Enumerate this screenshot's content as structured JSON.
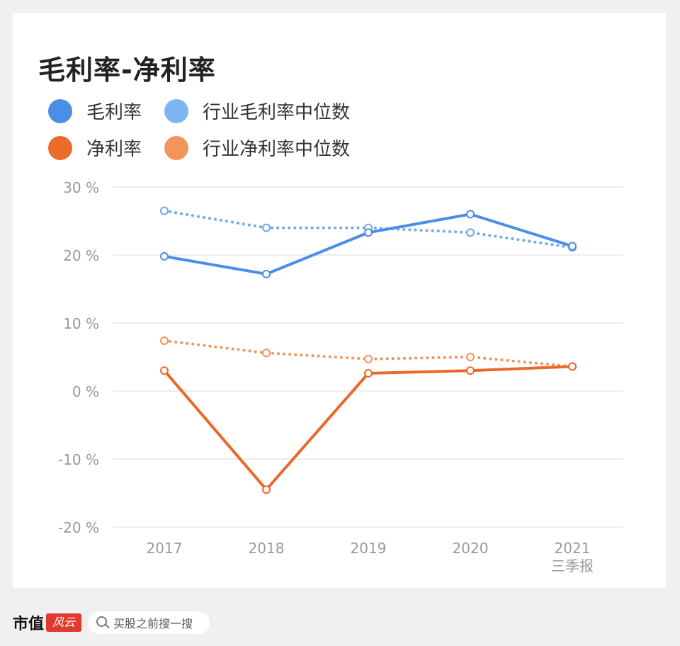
{
  "title": "毛利率-净利率",
  "legend": [
    {
      "label": "毛利率",
      "color": "#4a8ee8"
    },
    {
      "label": "行业毛利率中位数",
      "color": "#7eb4f0"
    },
    {
      "label": "净利率",
      "color": "#ec6a2a"
    },
    {
      "label": "行业净利率中位数",
      "color": "#f2955a"
    }
  ],
  "chart_data": {
    "type": "line",
    "categories": [
      "2017",
      "2018",
      "2019",
      "2020",
      "2021"
    ],
    "category_sublabels": [
      "",
      "",
      "",
      "",
      "三季报"
    ],
    "y_ticks": [
      "30 %",
      "20 %",
      "10 %",
      "0 %",
      "-10 %",
      "-20 %"
    ],
    "ylim": [
      -20,
      30
    ],
    "grid": true,
    "series": [
      {
        "name": "毛利率",
        "values": [
          19.8,
          17.2,
          23.3,
          26.0,
          21.3
        ],
        "color": "#4a8ee8",
        "style": "solid"
      },
      {
        "name": "行业毛利率中位数",
        "values": [
          26.5,
          24.0,
          24.0,
          23.3,
          21.1
        ],
        "color": "#6fa8ec",
        "style": "dotted"
      },
      {
        "name": "净利率",
        "values": [
          3.0,
          -14.5,
          2.6,
          3.0,
          3.6
        ],
        "color": "#e8692a",
        "style": "solid"
      },
      {
        "name": "行业净利率中位数",
        "values": [
          7.4,
          5.6,
          4.7,
          5.0,
          3.6
        ],
        "color": "#f0945a",
        "style": "dotted"
      }
    ]
  },
  "footer": {
    "brand": "市值",
    "brand_seal": "风云",
    "search_placeholder": "买股之前搜一搜"
  }
}
